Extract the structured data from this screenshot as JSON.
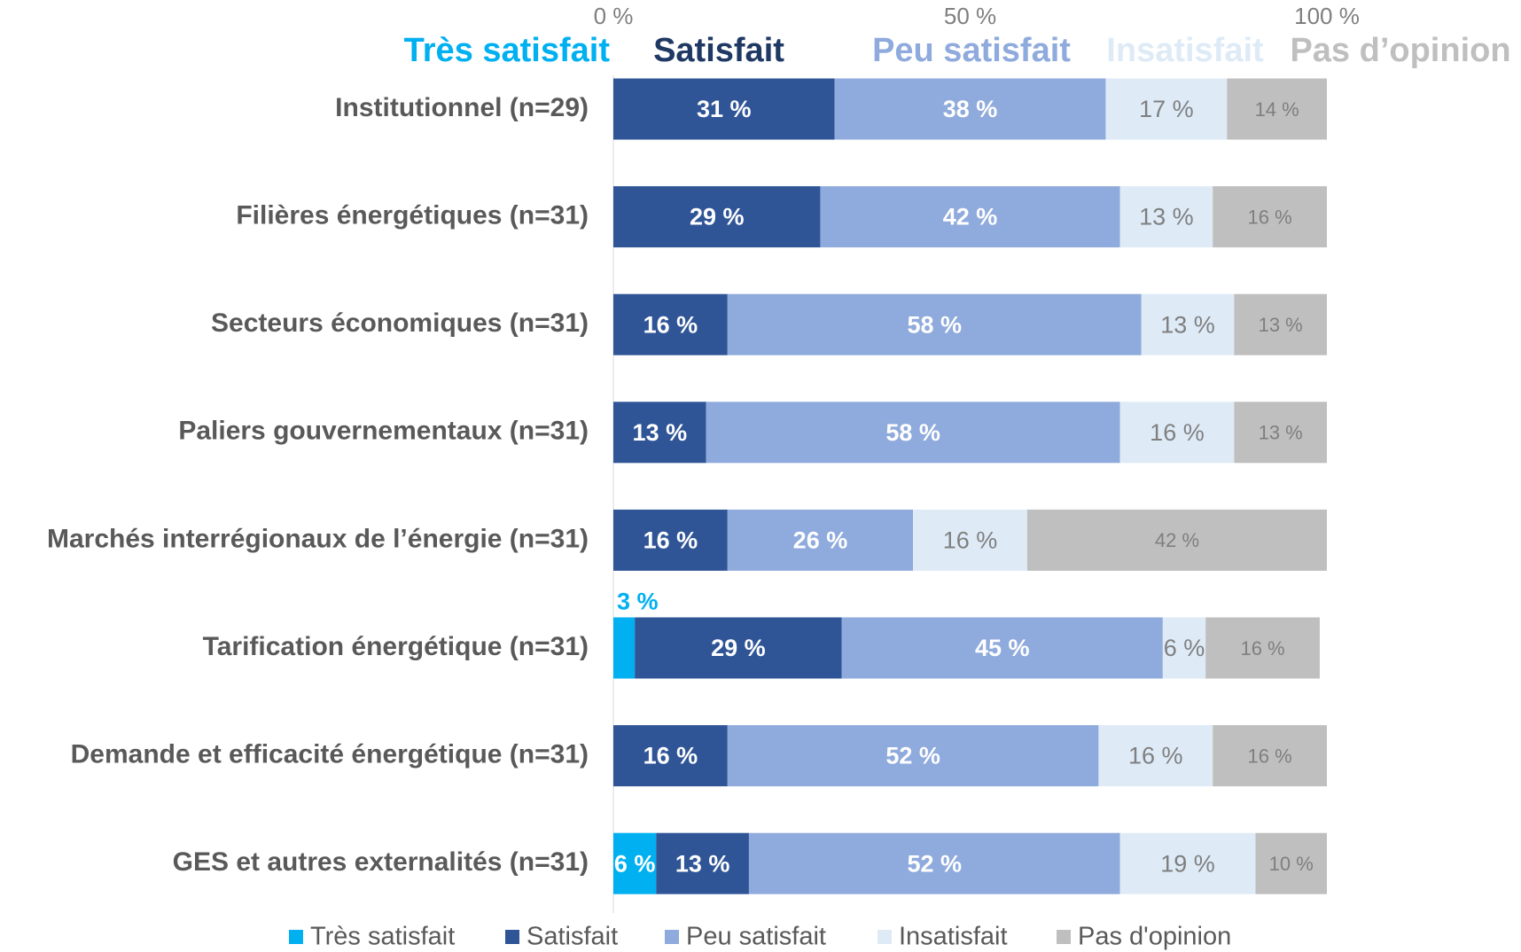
{
  "chart_data": {
    "type": "stacked_bar_horizontal",
    "header_labels": [
      "Très satisfait",
      "Satisfait",
      "Peu satisfait",
      "Insatisfait",
      "Pas d’opinion"
    ],
    "categories": [
      "Institutionnel (n=29)",
      "Filières énergétiques (n=31)",
      "Secteurs économiques (n=31)",
      "Paliers gouvernementaux (n=31)",
      "Marchés interrégionaux de l’énergie (n=31)",
      "Tarification énergétique (n=31)",
      "Demande et efficacité énergétique (n=31)",
      "GES et autres externalités (n=31)"
    ],
    "series": [
      {
        "name": "Très satisfait",
        "color": "#00b0f0",
        "label_color": "#ffffff",
        "values": [
          0,
          0,
          0,
          0,
          0,
          3,
          0,
          6
        ],
        "value_labels": [
          null,
          null,
          null,
          null,
          null,
          "3 %",
          null,
          "6 %"
        ]
      },
      {
        "name": "Satisfait",
        "color": "#2f5597",
        "label_color": "#ffffff",
        "values": [
          31,
          29,
          16,
          13,
          16,
          29,
          16,
          13
        ],
        "value_labels": [
          "31 %",
          "29 %",
          "16 %",
          "13 %",
          "16 %",
          "29 %",
          "16 %",
          "13 %"
        ]
      },
      {
        "name": "Peu satisfait",
        "color": "#8faadc",
        "label_color": "#ffffff",
        "values": [
          38,
          42,
          58,
          58,
          26,
          45,
          52,
          52
        ],
        "value_labels": [
          "38 %",
          "42 %",
          "58 %",
          "58 %",
          "26 %",
          "45 %",
          "52 %",
          "52 %"
        ]
      },
      {
        "name": "Insatisfait",
        "color": "#deebf7",
        "label_color": "#7f7f7f",
        "values": [
          17,
          13,
          13,
          16,
          16,
          6,
          16,
          19
        ],
        "value_labels": [
          "17 %",
          "13 %",
          "13 %",
          "16 %",
          "16 %",
          "6 %",
          "16 %",
          "19 %"
        ]
      },
      {
        "name": "Pas d'opinion",
        "color": "#bfbfbf",
        "label_color": "#7f7f7f",
        "values": [
          14,
          16,
          13,
          13,
          42,
          16,
          16,
          10
        ],
        "value_labels": [
          "14 %",
          "16 %",
          "13 %",
          "13 %",
          "42 %",
          "16 %",
          "16 %",
          "10 %"
        ]
      }
    ],
    "xlim": [
      0,
      100
    ],
    "xticks": [
      {
        "value": 0,
        "label": "0 %"
      },
      {
        "value": 50,
        "label": "50 %"
      },
      {
        "value": 100,
        "label": "100 %"
      }
    ],
    "legend": "bottom"
  }
}
